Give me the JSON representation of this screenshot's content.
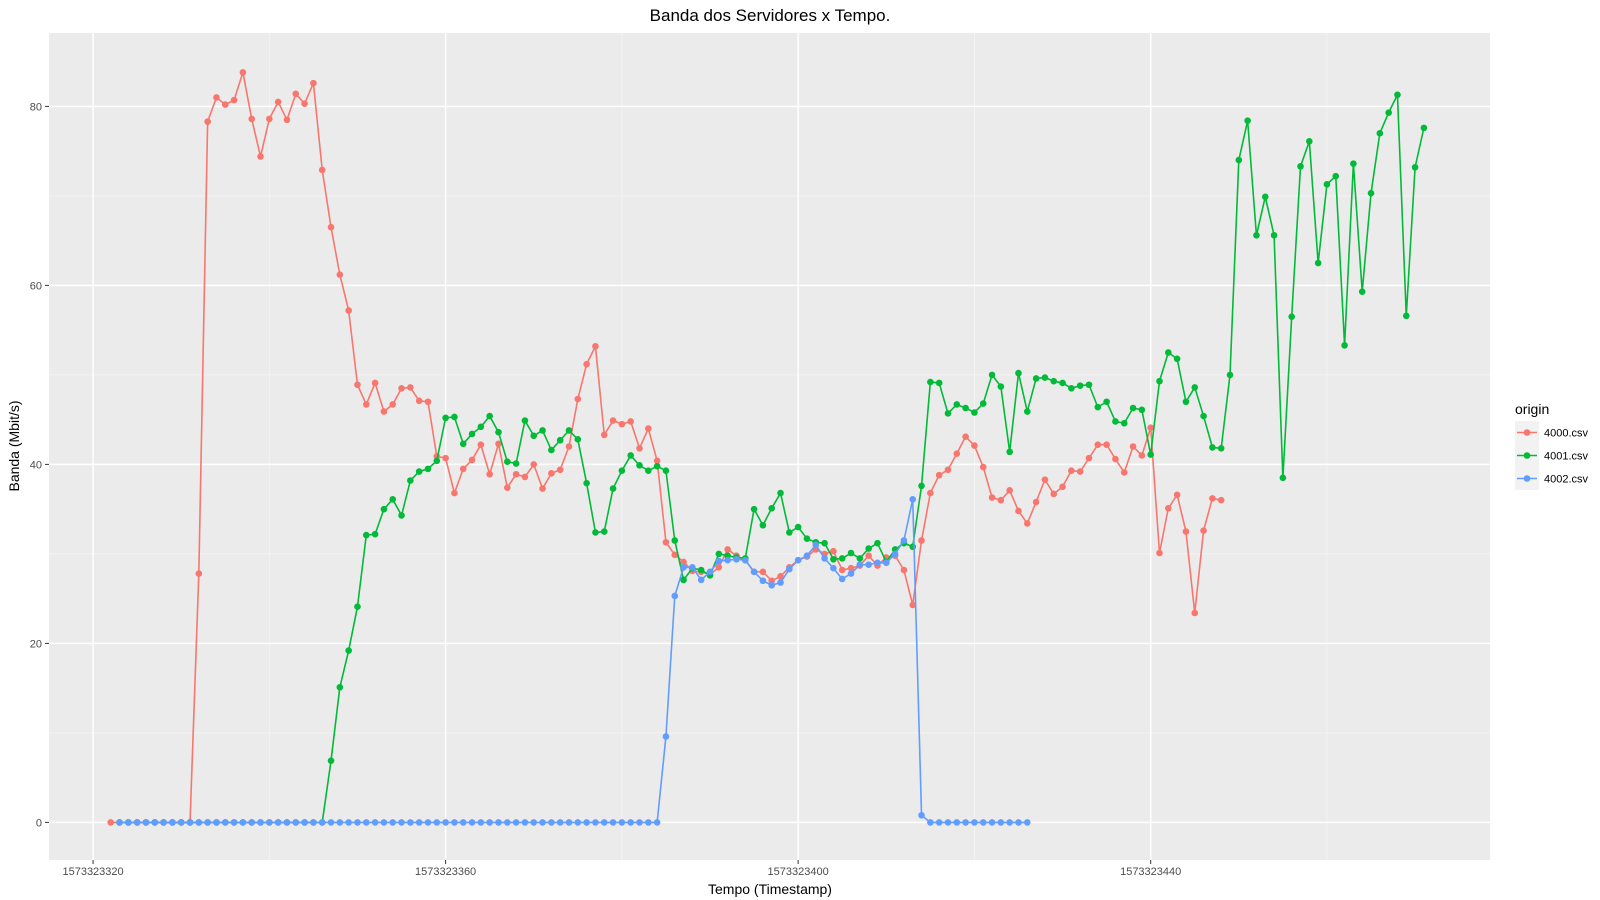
{
  "chart_data": {
    "type": "line",
    "title": "Banda dos Servidores x Tempo.",
    "xlabel": "Tempo (Timestamp)",
    "ylabel": "Banda (Mbit/s)",
    "xlim": [
      1573323315,
      1573323478.5
    ],
    "ylim": [
      -4.2,
      88.2
    ],
    "x_ticks": [
      1573323320,
      1573323360,
      1573323400,
      1573323440
    ],
    "x_tick_labels": [
      "1573323320",
      "1573323360",
      "1573323400",
      "1573323440"
    ],
    "y_ticks": [
      0,
      20,
      40,
      60,
      80
    ],
    "y_tick_labels": [
      "0",
      "20",
      "40",
      "60",
      "80"
    ],
    "grid": true,
    "legend": {
      "title": "origin",
      "position": "right"
    },
    "series": [
      {
        "name": "4000.csv",
        "color": "#F8766D",
        "x_start": 1573323322,
        "values": [
          0,
          0,
          0,
          0,
          0,
          0,
          0,
          0,
          0,
          0,
          27.8,
          78.3,
          81,
          80.2,
          80.7,
          83.8,
          78.6,
          74.4,
          78.6,
          80.5,
          78.5,
          81.4,
          80.3,
          82.6,
          72.9,
          66.5,
          61.2,
          57.2,
          48.9,
          46.7,
          49.1,
          45.9,
          46.7,
          48.5,
          48.6,
          47.1,
          47,
          40.9,
          40.7,
          36.8,
          39.5,
          40.5,
          42.2,
          38.9,
          42.3,
          37.4,
          38.9,
          38.6,
          40,
          37.3,
          39,
          39.4,
          42,
          47.3,
          51.2,
          53.2,
          43.3,
          44.9,
          44.5,
          44.8,
          41.8,
          44,
          40.4,
          31.3,
          29.9,
          29.1,
          28.1,
          28,
          27.7,
          28.5,
          30.5,
          29.8,
          29.3,
          28,
          28,
          27,
          27.5,
          28.5,
          29.3,
          29.7,
          30.5,
          30,
          30.3,
          28.2,
          28.4,
          28.7,
          29.8,
          28.7,
          29.6,
          29.8,
          28.2,
          24.3,
          31.5,
          36.8,
          38.8,
          39.4,
          41.2,
          43.1,
          42.1,
          39.7,
          36.3,
          36,
          37.1,
          34.8,
          33.4,
          35.8,
          38.3,
          36.7,
          37.5,
          39.3,
          39.2,
          40.7,
          42.2,
          42.2,
          40.6,
          39.1,
          42,
          41,
          44.1,
          30.1,
          35.1,
          36.6,
          32.5,
          23.4,
          32.6,
          36.2,
          36
        ]
      },
      {
        "name": "4001.csv",
        "color": "#00BA38",
        "x_start": 1573323323,
        "values": [
          0,
          0,
          0,
          0,
          0,
          0,
          0,
          0,
          0,
          0,
          0,
          0,
          0,
          0,
          0,
          0,
          0,
          0,
          0,
          0,
          0,
          0,
          0,
          0,
          6.9,
          15.1,
          19.2,
          24.1,
          32.1,
          32.2,
          35,
          36.1,
          34.3,
          38.2,
          39.2,
          39.5,
          40.4,
          45.2,
          45.3,
          42.3,
          43.4,
          44.2,
          45.4,
          43.6,
          40.3,
          40.1,
          44.9,
          43.2,
          43.8,
          41.6,
          42.7,
          43.8,
          42.8,
          37.9,
          32.4,
          32.5,
          37.3,
          39.3,
          41,
          39.9,
          39.3,
          39.8,
          39.3,
          31.5,
          27.1,
          28.4,
          28.2,
          27.6,
          30,
          29.8,
          29.6,
          29.5,
          35,
          33.2,
          35.1,
          36.8,
          32.4,
          33,
          31.7,
          31.3,
          31.2,
          29.4,
          29.5,
          30.1,
          29.5,
          30.6,
          31.2,
          29.1,
          30.5,
          31.2,
          30.8,
          37.6,
          49.2,
          49.1,
          45.7,
          46.7,
          46.3,
          45.8,
          46.8,
          50,
          48.7,
          41.4,
          50.2,
          45.9,
          49.6,
          49.7,
          49.3,
          49.1,
          48.5,
          48.8,
          48.9,
          46.4,
          47,
          44.8,
          44.6,
          46.3,
          46.1,
          41.1,
          49.3,
          52.5,
          51.8,
          47,
          48.6,
          45.4,
          41.9,
          41.8,
          50,
          74,
          78.4,
          65.6,
          69.9,
          65.6,
          38.5,
          56.5,
          73.3,
          76.1,
          62.5,
          71.3,
          72.2,
          53.3,
          73.6,
          59.3,
          70.3,
          77,
          79.3,
          81.3,
          56.6,
          73.2,
          77.6
        ]
      },
      {
        "name": "4002.csv",
        "color": "#619CFF",
        "x_start": 1573323323,
        "values": [
          0,
          0,
          0,
          0,
          0,
          0,
          0,
          0,
          0,
          0,
          0,
          0,
          0,
          0,
          0,
          0,
          0,
          0,
          0,
          0,
          0,
          0,
          0,
          0,
          0,
          0,
          0,
          0,
          0,
          0,
          0,
          0,
          0,
          0,
          0,
          0,
          0,
          0,
          0,
          0,
          0,
          0,
          0,
          0,
          0,
          0,
          0,
          0,
          0,
          0,
          0,
          0,
          0,
          0,
          0,
          0,
          0,
          0,
          0,
          0,
          0,
          0,
          9.6,
          25.3,
          28.5,
          28.5,
          27.1,
          28,
          29.2,
          29.3,
          29.4,
          29.3,
          28,
          27,
          26.5,
          26.8,
          28.3,
          29.3,
          29.8,
          31,
          29.5,
          28.4,
          27.2,
          27.8,
          28.8,
          28.8,
          29,
          29,
          30,
          31.5,
          36.1,
          0.8,
          0,
          0,
          0,
          0,
          0,
          0,
          0,
          0,
          0,
          0,
          0,
          0
        ]
      }
    ]
  }
}
